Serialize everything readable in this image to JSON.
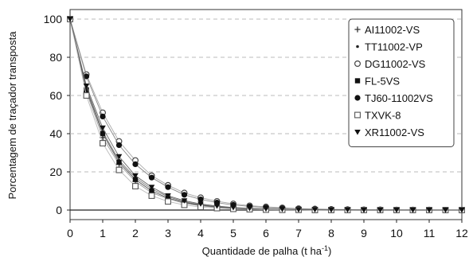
{
  "chart_data": {
    "type": "line",
    "xlabel": "Quantidade de palha (t ha",
    "xlabel_unit_superscript": "-1",
    "xlabel_close": ")",
    "ylabel": "Porcentagem de traçador transposta",
    "xlim": [
      0,
      12
    ],
    "ylim": [
      -5,
      105
    ],
    "xticks": [
      0,
      1,
      2,
      3,
      4,
      5,
      6,
      7,
      8,
      9,
      10,
      11,
      12
    ],
    "yticks": [
      0,
      20,
      40,
      60,
      80,
      100
    ],
    "grid": "horizontal-dashed",
    "legend_position": "top-right",
    "x": [
      0,
      0.5,
      1,
      1.5,
      2,
      2.5,
      3,
      3.5,
      4,
      4.5,
      5,
      5.5,
      6,
      6.5,
      7,
      7.5,
      8,
      8.5,
      9,
      9.5,
      10,
      10.5,
      11,
      11.5,
      12
    ],
    "series": [
      {
        "name": "AI11002-VS",
        "marker": "plus",
        "values": [
          100,
          62,
          38,
          24,
          15,
          9,
          6,
          3.5,
          2.2,
          1.4,
          0.8,
          0.5,
          0.3,
          0.2,
          0.1,
          0.1,
          0,
          0,
          0,
          0,
          0,
          0,
          0,
          0,
          0
        ]
      },
      {
        "name": "TT11002-VP",
        "marker": "dot",
        "values": [
          100,
          64,
          41,
          26,
          17,
          11,
          7,
          4.4,
          2.8,
          1.8,
          1.1,
          0.7,
          0.5,
          0.3,
          0.2,
          0.1,
          0.1,
          0,
          0,
          0,
          0,
          0,
          0,
          0,
          0
        ]
      },
      {
        "name": "DG11002-VS",
        "marker": "circle-open",
        "values": [
          100,
          71,
          51,
          36,
          26,
          18,
          13,
          9,
          6.5,
          4.6,
          3.3,
          2.3,
          1.7,
          1.2,
          0.8,
          0.6,
          0.4,
          0.3,
          0.2,
          0.2,
          0.1,
          0.1,
          0.1,
          0,
          0
        ]
      },
      {
        "name": "FL-5VS",
        "marker": "square-filled",
        "values": [
          100,
          63,
          40,
          25,
          16,
          10,
          6.3,
          4,
          2.5,
          1.6,
          1,
          0.6,
          0.4,
          0.3,
          0.2,
          0.1,
          0.1,
          0,
          0,
          0,
          0,
          0,
          0,
          0,
          0
        ]
      },
      {
        "name": "TJ60-11002VS",
        "marker": "circle-filled",
        "values": [
          100,
          70,
          49,
          34,
          24,
          17,
          12,
          8,
          5.6,
          3.9,
          2.7,
          1.9,
          1.3,
          0.9,
          0.6,
          0.4,
          0.3,
          0.2,
          0.1,
          0.1,
          0.1,
          0,
          0,
          0,
          0
        ]
      },
      {
        "name": "TXVK-8",
        "marker": "square-open",
        "values": [
          100,
          60,
          35,
          21,
          12.5,
          7.5,
          4.5,
          2.7,
          1.6,
          1,
          0.6,
          0.4,
          0.2,
          0.1,
          0.1,
          0,
          0,
          0,
          0,
          0,
          0,
          0,
          0,
          0,
          0
        ]
      },
      {
        "name": "XR11002-VS",
        "marker": "triangle-down",
        "values": [
          100,
          65,
          43,
          28,
          18,
          12,
          7.5,
          4.9,
          3.2,
          2.1,
          1.3,
          0.9,
          0.6,
          0.4,
          0.2,
          0.2,
          0.1,
          0.1,
          0,
          0,
          0,
          0,
          0,
          0,
          0
        ]
      }
    ]
  }
}
